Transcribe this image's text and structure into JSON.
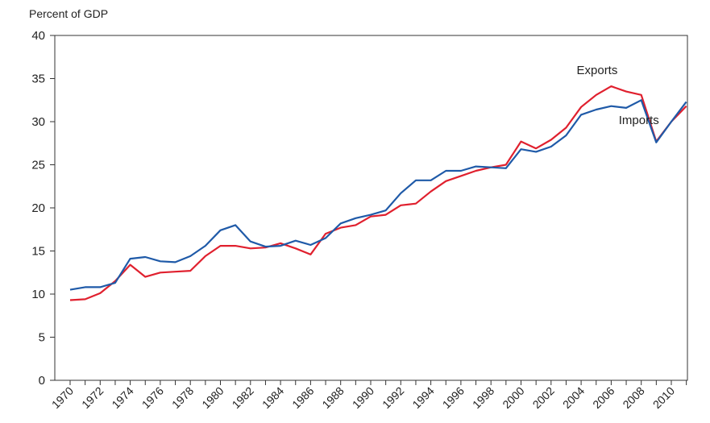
{
  "chart_data": {
    "type": "line",
    "title": "",
    "ylabel": "Percent of GDP",
    "xlabel": "",
    "ylim": [
      0,
      40
    ],
    "yticks": [
      0,
      5,
      10,
      15,
      20,
      25,
      30,
      35,
      40
    ],
    "xlim": [
      1970,
      2011
    ],
    "xticks": [
      "1970",
      "1972",
      "1974",
      "1976",
      "1978",
      "1980",
      "1982",
      "1984",
      "1986",
      "1988",
      "1990",
      "1992",
      "1994",
      "1996",
      "1998",
      "2000",
      "2002",
      "2004",
      "2006",
      "2008",
      "2010"
    ],
    "x": [
      1970,
      1971,
      1972,
      1973,
      1974,
      1975,
      1976,
      1977,
      1978,
      1979,
      1980,
      1981,
      1982,
      1983,
      1984,
      1985,
      1986,
      1987,
      1988,
      1989,
      1990,
      1991,
      1992,
      1993,
      1994,
      1995,
      1996,
      1997,
      1998,
      1999,
      2000,
      2001,
      2002,
      2003,
      2004,
      2005,
      2006,
      2007,
      2008,
      2009,
      2010,
      2011
    ],
    "series": [
      {
        "name": "Exports",
        "color": "#e0202e",
        "values": [
          9.3,
          9.4,
          10.1,
          11.5,
          13.4,
          12.0,
          12.5,
          12.6,
          12.7,
          14.4,
          15.6,
          15.6,
          15.3,
          15.4,
          15.9,
          15.3,
          14.6,
          17.0,
          17.7,
          18.0,
          19.0,
          19.2,
          20.3,
          20.5,
          21.9,
          23.1,
          23.7,
          24.3,
          24.7,
          25.0,
          27.7,
          26.9,
          27.9,
          29.3,
          31.7,
          33.1,
          34.1,
          33.5,
          33.1,
          27.7,
          30.0,
          31.8
        ]
      },
      {
        "name": "Imports",
        "color": "#1f5aa8",
        "values": [
          10.5,
          10.8,
          10.8,
          11.3,
          14.1,
          14.3,
          13.8,
          13.7,
          14.4,
          15.6,
          17.4,
          18.0,
          16.1,
          15.5,
          15.6,
          16.2,
          15.7,
          16.5,
          18.2,
          18.8,
          19.2,
          19.7,
          21.7,
          23.2,
          23.2,
          24.3,
          24.3,
          24.8,
          24.7,
          24.6,
          26.8,
          26.5,
          27.1,
          28.4,
          30.8,
          31.4,
          31.8,
          31.6,
          32.5,
          27.6,
          30.0,
          32.3
        ]
      }
    ],
    "annotations": [
      {
        "text": "Exports",
        "series": "Exports"
      },
      {
        "text": "Imports",
        "series": "Imports"
      }
    ],
    "grid": false
  }
}
